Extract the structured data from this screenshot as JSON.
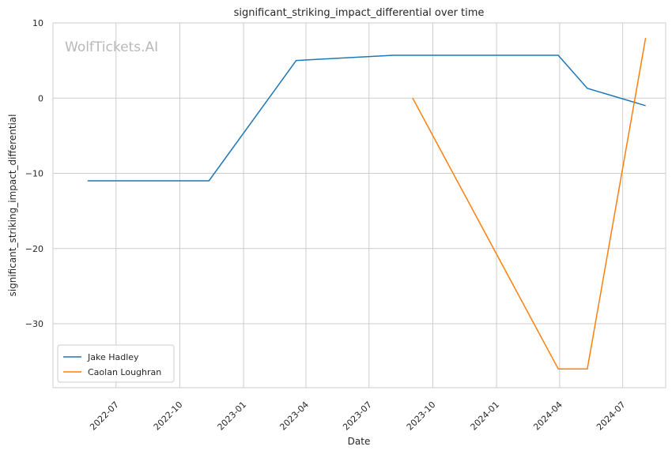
{
  "chart_data": {
    "type": "line",
    "title": "significant_striking_impact_differential over time",
    "xlabel": "Date",
    "ylabel": "significant_striking_impact_differential",
    "watermark": "WolfTickets.AI",
    "x_ticks": [
      "2022-07",
      "2022-10",
      "2023-01",
      "2023-04",
      "2023-07",
      "2023-10",
      "2024-01",
      "2024-04",
      "2024-07"
    ],
    "y_ticks": [
      10,
      0,
      -10,
      -20,
      -30
    ],
    "y_tick_labels": [
      "10",
      "0",
      "−10",
      "−20",
      "−30"
    ],
    "xlim": [
      "2022-04-01",
      "2024-09-01"
    ],
    "ylim": [
      -38.5,
      10
    ],
    "grid": true,
    "legend_position": "lower-left",
    "series": [
      {
        "name": "Jake Hadley",
        "color": "#1f77b4",
        "points": [
          {
            "x": "2022-05-21",
            "y": -11
          },
          {
            "x": "2022-11-12",
            "y": -11
          },
          {
            "x": "2023-03-18",
            "y": 5.0
          },
          {
            "x": "2023-08-05",
            "y": 5.7
          },
          {
            "x": "2024-03-30",
            "y": 5.7
          },
          {
            "x": "2024-05-11",
            "y": 1.3
          },
          {
            "x": "2024-08-03",
            "y": -1.0
          }
        ]
      },
      {
        "name": "Caolan Loughran",
        "color": "#ff7f0e",
        "points": [
          {
            "x": "2023-09-02",
            "y": 0
          },
          {
            "x": "2024-03-30",
            "y": -36
          },
          {
            "x": "2024-05-11",
            "y": -36
          },
          {
            "x": "2024-08-03",
            "y": 8.0
          }
        ]
      }
    ]
  }
}
